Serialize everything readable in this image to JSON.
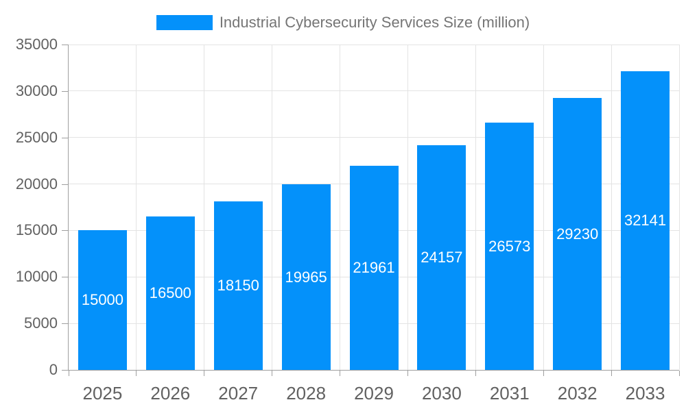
{
  "legend": {
    "label": "Industrial Cybersecurity Services Size (million)"
  },
  "chart_data": {
    "type": "bar",
    "title": "Industrial Cybersecurity Services Size (million)",
    "categories": [
      "2025",
      "2026",
      "2027",
      "2028",
      "2029",
      "2030",
      "2031",
      "2032",
      "2033"
    ],
    "values": [
      15000,
      16500,
      18150,
      19965,
      21961,
      24157,
      26573,
      29230,
      32141
    ],
    "bar_labels": [
      "15000",
      "16500",
      "18150",
      "19965",
      "21961",
      "24157",
      "26573",
      "29230",
      "32141"
    ],
    "xlabel": "",
    "ylabel": "",
    "ylim": [
      0,
      35000
    ],
    "ytick_step": 5000,
    "yticks": [
      "0",
      "5000",
      "10000",
      "15000",
      "20000",
      "25000",
      "30000",
      "35000"
    ],
    "grid": true,
    "legend_position": "top-center",
    "colors": {
      "bar": "#0491fa",
      "bar_label": "#ffffff",
      "grid": "#e3e3e3",
      "axis": "#9e9e9e",
      "tick_label": "#616161",
      "legend_text": "#757575",
      "background": "#ffffff"
    }
  }
}
